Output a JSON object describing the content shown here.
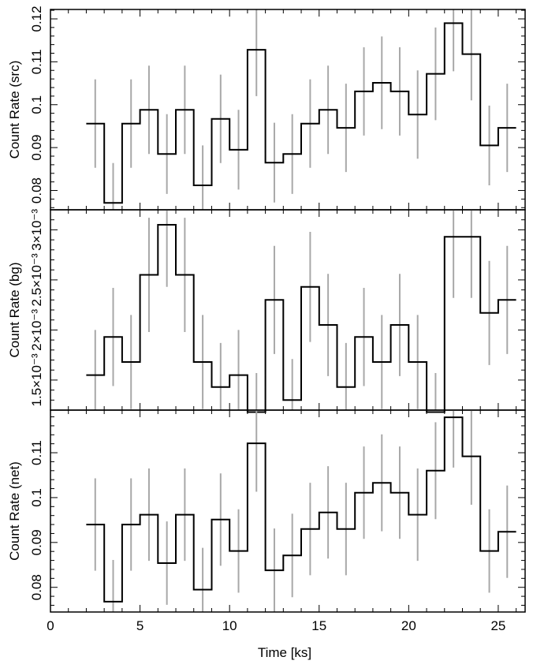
{
  "chart_data": [
    {
      "type": "line",
      "panel": "src",
      "ylabel": "Count Rate (src)",
      "xlim": [
        0,
        26.5
      ],
      "ylim": [
        0.0755,
        0.1222
      ],
      "yticks": [
        0.08,
        0.09,
        0.1,
        0.11,
        0.12
      ],
      "ytick_labels": [
        "0.08",
        "0.09",
        "0.1",
        "0.11",
        "0.12"
      ],
      "bin_edges": [
        2,
        3,
        4,
        5,
        6,
        7,
        8,
        9,
        10,
        11,
        12,
        13,
        14,
        15,
        16,
        17,
        18,
        19,
        20,
        21,
        22,
        23,
        24,
        25,
        26
      ],
      "x": [
        2.5,
        3.5,
        4.5,
        5.5,
        6.5,
        7.5,
        8.5,
        9.5,
        10.5,
        11.5,
        12.5,
        13.5,
        14.5,
        15.5,
        16.5,
        17.5,
        18.5,
        19.5,
        20.5,
        21.5,
        22.5,
        23.5,
        24.5,
        25.5
      ],
      "values": [
        0.0956,
        0.0771,
        0.0956,
        0.0988,
        0.0885,
        0.0988,
        0.0812,
        0.0967,
        0.0895,
        0.1128,
        0.0865,
        0.0885,
        0.0956,
        0.0988,
        0.0946,
        0.1031,
        0.1051,
        0.1031,
        0.0977,
        0.1072,
        0.119,
        0.1118,
        0.0905,
        0.0946
      ],
      "errors": [
        0.0103,
        0.0093,
        0.0103,
        0.0103,
        0.0093,
        0.0103,
        0.0093,
        0.0103,
        0.0093,
        0.0108,
        0.0093,
        0.0093,
        0.0103,
        0.0103,
        0.0103,
        0.0103,
        0.0108,
        0.0103,
        0.0103,
        0.0108,
        0.0112,
        0.0108,
        0.0093,
        0.0103
      ]
    },
    {
      "type": "line",
      "panel": "bg",
      "ylabel": "Count Rate (bg)",
      "xlim": [
        0,
        26.5
      ],
      "ylim": [
        0.0012,
        0.0032
      ],
      "yticks": [
        0.0015,
        0.002,
        0.0025,
        0.003
      ],
      "ytick_labels": [
        "1.5×10⁻³",
        "2×10⁻³",
        "2.5×10⁻³",
        "3×10⁻³"
      ],
      "bin_edges": [
        2,
        3,
        4,
        5,
        6,
        7,
        8,
        9,
        10,
        11,
        12,
        13,
        14,
        15,
        16,
        17,
        18,
        19,
        20,
        21,
        22,
        23,
        24,
        25,
        26
      ],
      "x": [
        2.5,
        3.5,
        4.5,
        5.5,
        6.5,
        7.5,
        8.5,
        9.5,
        10.5,
        11.5,
        12.5,
        13.5,
        14.5,
        15.5,
        16.5,
        17.5,
        18.5,
        19.5,
        20.5,
        21.5,
        22.5,
        23.5,
        24.5,
        25.5
      ],
      "values": [
        0.00155,
        0.00193,
        0.00168,
        0.00255,
        0.00305,
        0.00255,
        0.00168,
        0.00143,
        0.00155,
        0.00118,
        0.0023,
        0.0013,
        0.00243,
        0.00205,
        0.00143,
        0.00193,
        0.00168,
        0.00205,
        0.00168,
        0.00118,
        0.00293,
        0.00293,
        0.00217,
        0.0023
      ],
      "errors": [
        0.00045,
        0.00049,
        0.00047,
        0.00057,
        0.00062,
        0.00057,
        0.00047,
        0.00044,
        0.00045,
        0.00039,
        0.00054,
        0.00041,
        0.00055,
        0.00051,
        0.00044,
        0.00049,
        0.00047,
        0.00051,
        0.00047,
        0.00039,
        0.00061,
        0.00061,
        0.00052,
        0.00054
      ]
    },
    {
      "type": "line",
      "panel": "net",
      "xlabel": "Time [ks]",
      "ylabel": "Count Rate (net)",
      "xlim": [
        0,
        26.5
      ],
      "xticks": [
        0,
        5,
        10,
        15,
        20,
        25
      ],
      "xtick_labels": [
        "0",
        "5",
        "10",
        "15",
        "20",
        "25"
      ],
      "ylim": [
        0.0745,
        0.1195
      ],
      "yticks": [
        0.08,
        0.09,
        0.1,
        0.11
      ],
      "ytick_labels": [
        "0.08",
        "0.09",
        "0.1",
        "0.11"
      ],
      "bin_edges": [
        2,
        3,
        4,
        5,
        6,
        7,
        8,
        9,
        10,
        11,
        12,
        13,
        14,
        15,
        16,
        17,
        18,
        19,
        20,
        21,
        22,
        23,
        24,
        25,
        26
      ],
      "x": [
        2.5,
        3.5,
        4.5,
        5.5,
        6.5,
        7.5,
        8.5,
        9.5,
        10.5,
        11.5,
        12.5,
        13.5,
        14.5,
        15.5,
        16.5,
        17.5,
        18.5,
        19.5,
        20.5,
        21.5,
        22.5,
        23.5,
        24.5,
        25.5
      ],
      "values": [
        0.094,
        0.0768,
        0.094,
        0.0962,
        0.0854,
        0.0962,
        0.0795,
        0.0951,
        0.0881,
        0.1121,
        0.0838,
        0.0871,
        0.093,
        0.0967,
        0.093,
        0.1011,
        0.1033,
        0.1011,
        0.0962,
        0.106,
        0.1179,
        0.1092,
        0.0881,
        0.0924
      ],
      "errors": [
        0.0103,
        0.0093,
        0.0103,
        0.0103,
        0.0093,
        0.0103,
        0.0093,
        0.0103,
        0.0093,
        0.0108,
        0.0093,
        0.0093,
        0.0103,
        0.0103,
        0.0103,
        0.0103,
        0.0108,
        0.0103,
        0.0103,
        0.0108,
        0.0112,
        0.0108,
        0.0093,
        0.0103
      ]
    }
  ]
}
